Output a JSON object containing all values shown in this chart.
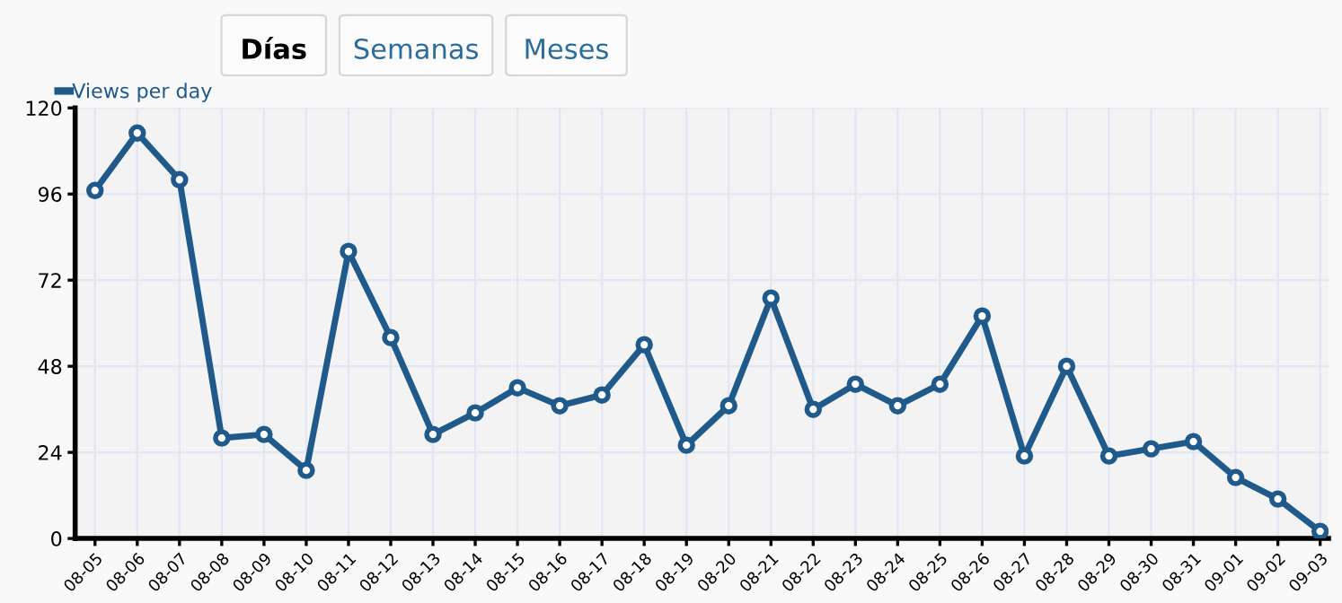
{
  "chart_data": {
    "type": "line",
    "annotations": [
      "Días",
      "Semanas",
      "Meses"
    ],
    "categories": [
      "08-05",
      "08-06",
      "08-07",
      "08-08",
      "08-09",
      "08-10",
      "08-11",
      "08-12",
      "08-13",
      "08-14",
      "08-15",
      "08-16",
      "08-17",
      "08-18",
      "08-19",
      "08-20",
      "08-21",
      "08-22",
      "08-23",
      "08-24",
      "08-25",
      "08-26",
      "08-27",
      "08-28",
      "08-29",
      "08-30",
      "08-31",
      "09-01",
      "09-02",
      "09-03"
    ],
    "series": [
      {
        "name": "Views per day",
        "color": "#1f5a8a",
        "values": [
          97,
          113,
          100,
          28,
          29,
          19,
          80,
          56,
          29,
          35,
          42,
          37,
          40,
          54,
          26,
          37,
          67,
          36,
          43,
          37,
          43,
          62,
          23,
          48,
          23,
          25,
          27,
          17,
          11,
          2
        ]
      }
    ],
    "ylim": [
      0,
      120
    ],
    "yticks": [
      0,
      24,
      48,
      72,
      96,
      120
    ],
    "grid": true,
    "legend": "top left",
    "marker": "circle",
    "line_style": "solid"
  }
}
